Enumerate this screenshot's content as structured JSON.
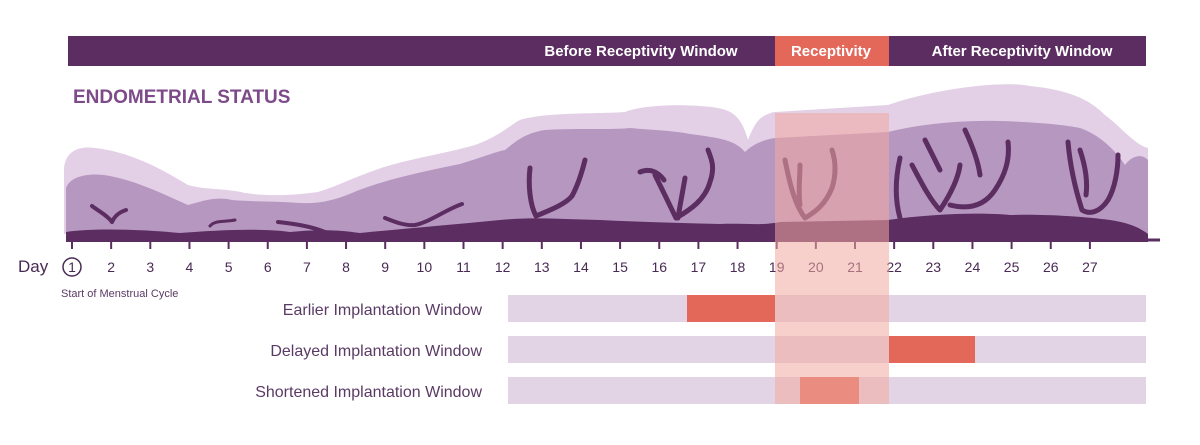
{
  "phases": {
    "before": "Before Receptivity Window",
    "receptivity": "Receptivity",
    "after": "After Receptivity Window"
  },
  "section_title": "ENDOMETRIAL STATUS",
  "day_axis": {
    "label": "Day",
    "days": [
      "1",
      "2",
      "3",
      "4",
      "5",
      "6",
      "7",
      "8",
      "9",
      "10",
      "11",
      "12",
      "13",
      "14",
      "15",
      "16",
      "17",
      "18",
      "19",
      "20",
      "21",
      "22",
      "23",
      "24",
      "25",
      "26",
      "27"
    ],
    "start_note": "Start of Menstrual Cycle"
  },
  "windows": {
    "earlier": "Earlier Implantation Window",
    "delayed": "Delayed Implantation Window",
    "shortened": "Shortened Implantation Window"
  },
  "colors": {
    "dark_purple": "#5b2d61",
    "medium_purple": "#a98ab6",
    "light_purple": "#e3cfe6",
    "bar_bg": "#e2d4e4",
    "accent_red": "#e3685a",
    "receptivity_overlay": "#f2a9a0"
  }
}
